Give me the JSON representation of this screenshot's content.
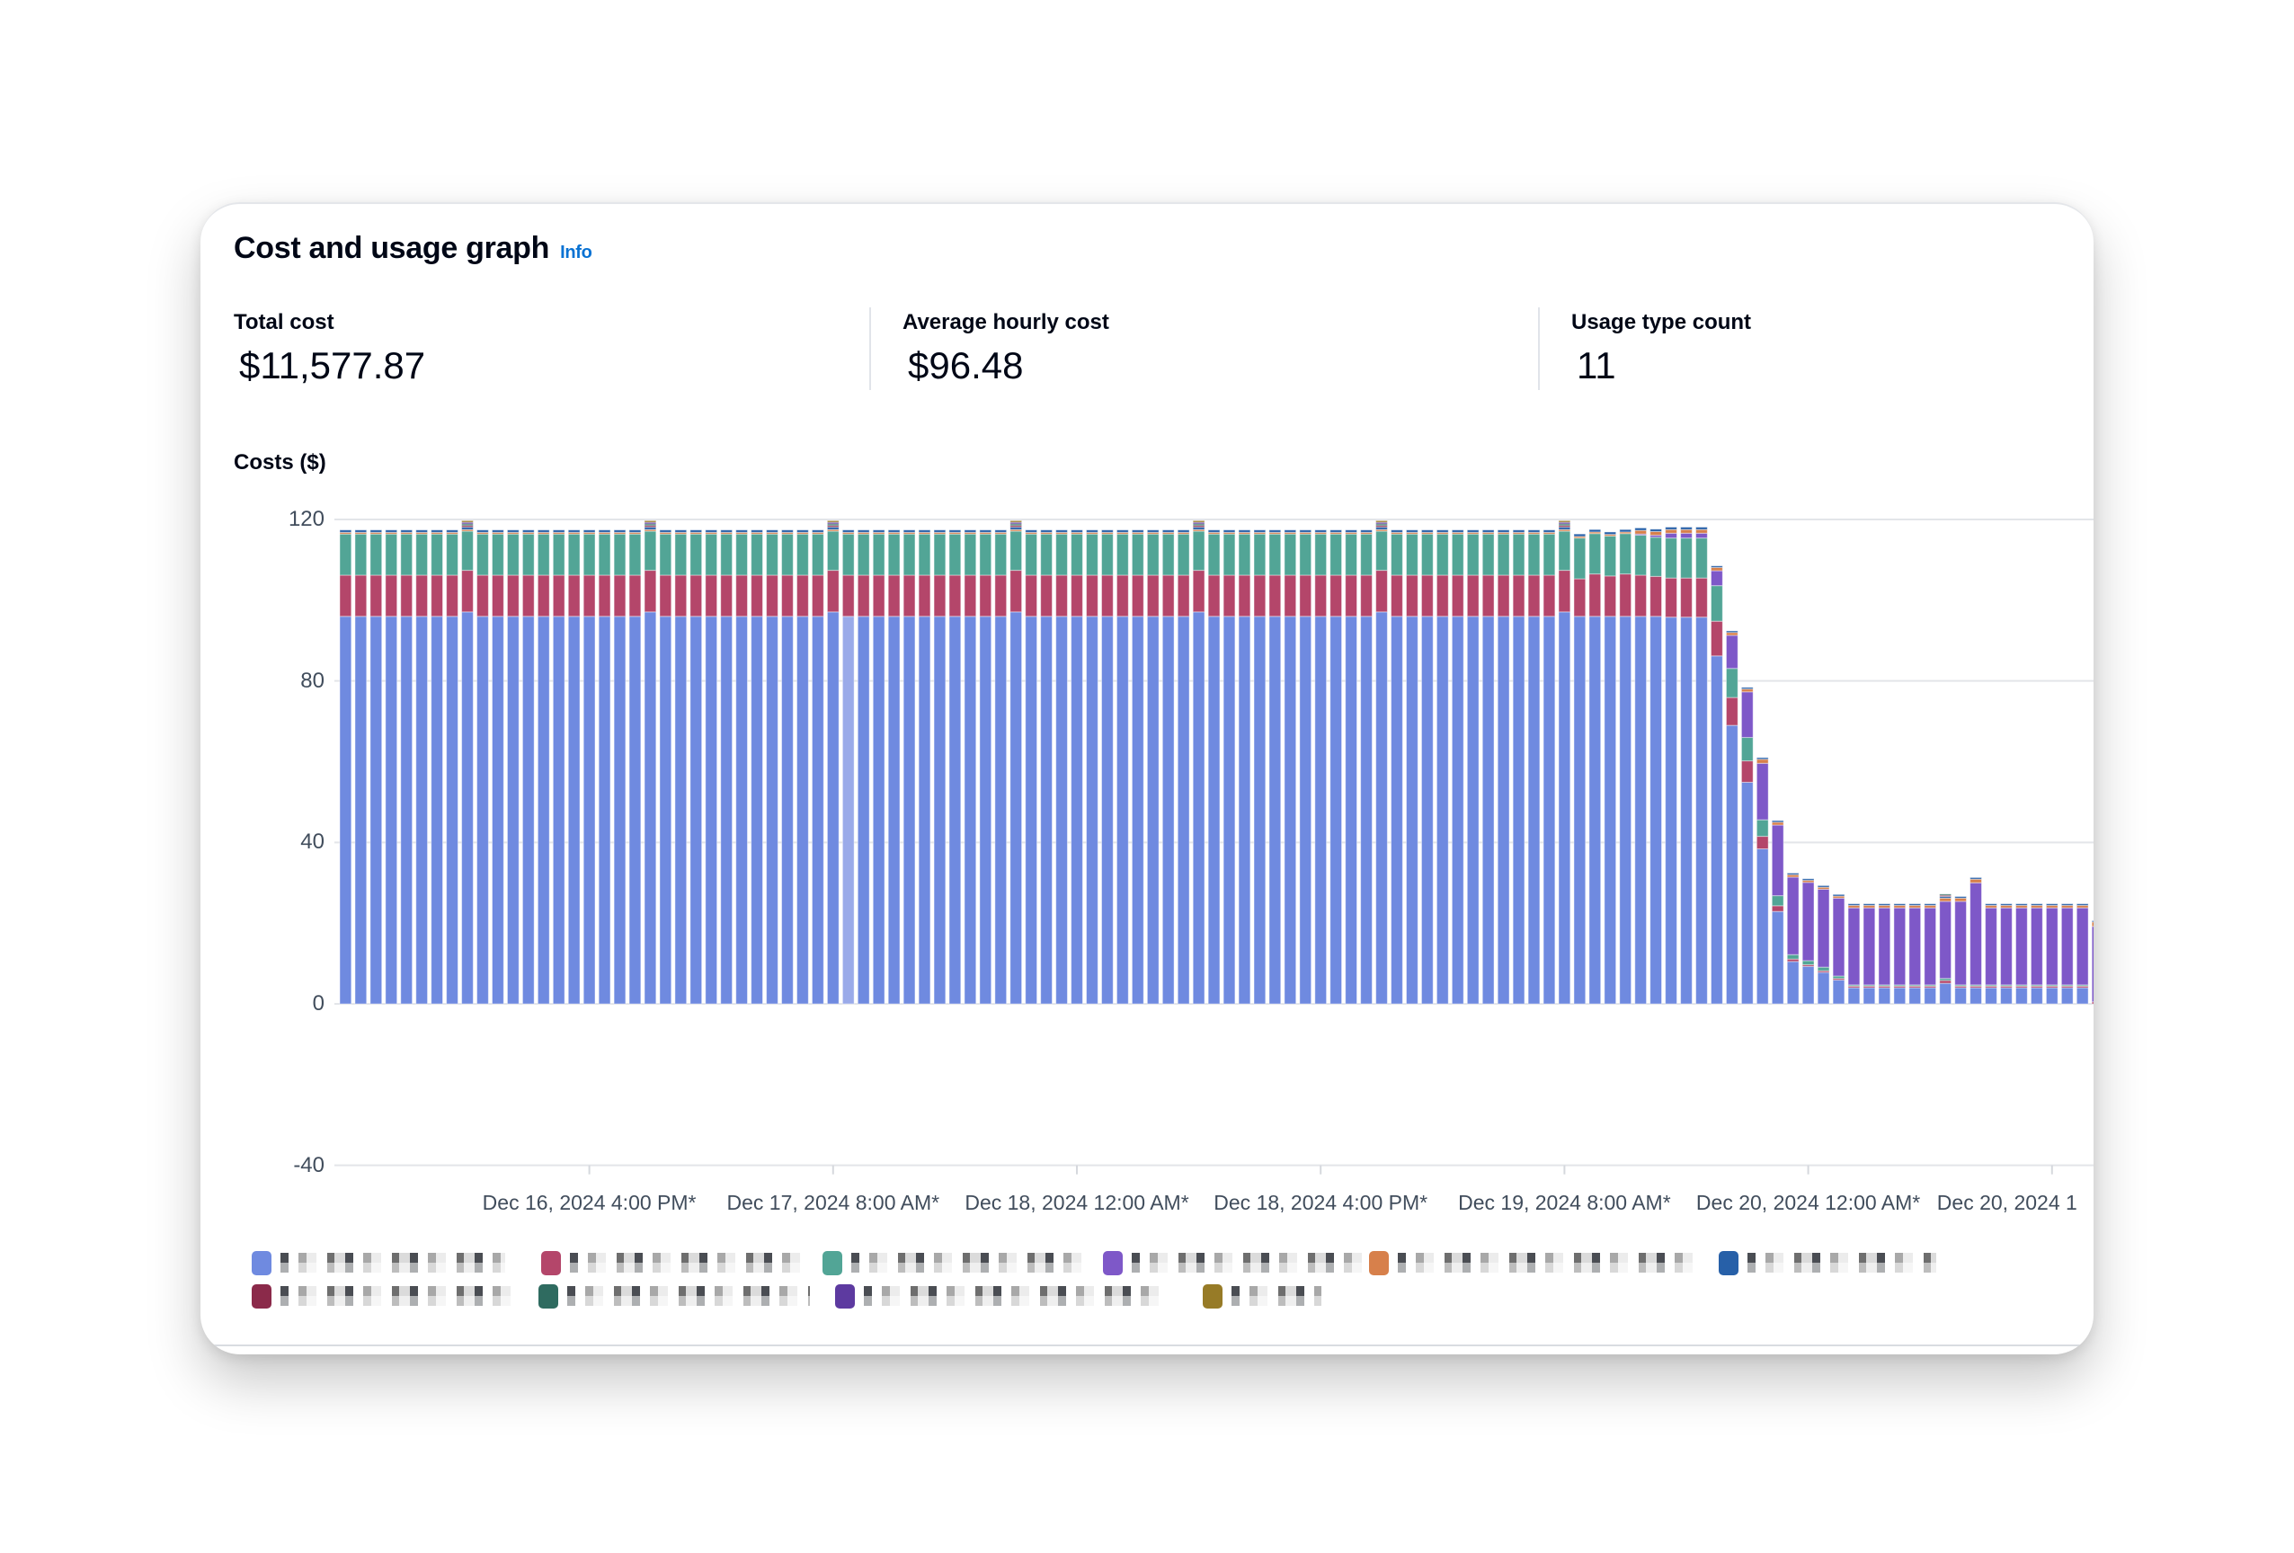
{
  "header": {
    "title": "Cost and usage graph",
    "info_link": "Info"
  },
  "summary": [
    {
      "label": "Total cost",
      "value": "$11,577.87"
    },
    {
      "label": "Average hourly cost",
      "value": "$96.48"
    },
    {
      "label": "Usage type count",
      "value": "11"
    }
  ],
  "chart_data": {
    "type": "bar",
    "stacked": true,
    "title": "",
    "ylabel": "Costs ($)",
    "xlabel": "",
    "ylim": [
      -40,
      120
    ],
    "yticks": [
      "120",
      "80",
      "40",
      "0",
      "-40"
    ],
    "ytick_values": [
      120,
      80,
      40,
      0,
      -40
    ],
    "grid": true,
    "x_tick_every_bars": 16,
    "x_tick_first_bar": 16,
    "xticks": [
      "Dec 16, 2024 4:00 PM*",
      "Dec 17, 2024 8:00 AM*",
      "Dec 18, 2024 12:00 AM*",
      "Dec 18, 2024 4:00 PM*",
      "Dec 19, 2024 8:00 AM*",
      "Dec 20, 2024 12:00 AM*",
      "Dec 20, 2024 1"
    ],
    "bar_count": 116,
    "highlighted_index": 33,
    "highlight_color": "#9aaae9",
    "legend_placement": "bottom",
    "series": [
      {
        "color": "#6f8ae0",
        "values": [
          96,
          96,
          96,
          96,
          96,
          96,
          96,
          96,
          97.1,
          96,
          96,
          96,
          96,
          96,
          96,
          96,
          96,
          96,
          96,
          96,
          97.1,
          96,
          96,
          96,
          96,
          96,
          96,
          96,
          96,
          96,
          96,
          96,
          97.1,
          96,
          96,
          96,
          96,
          96,
          96,
          96,
          96,
          96,
          96,
          96,
          97.1,
          96,
          96,
          96,
          96,
          96,
          96,
          96,
          96,
          96,
          96,
          96,
          97.1,
          96,
          96,
          96,
          96,
          96,
          96,
          96,
          96,
          96,
          96,
          96,
          97.1,
          96,
          96,
          96,
          96,
          96,
          96,
          96,
          96,
          96,
          96,
          96,
          97.1,
          96,
          96,
          96,
          96,
          96,
          96,
          95.8,
          95.8,
          95.8,
          86.2,
          69.0,
          54.9,
          38.4,
          22.9,
          10.5,
          9.3,
          7.8,
          5.9,
          4,
          4,
          4,
          4,
          4,
          4,
          5.1,
          4,
          4,
          4,
          4,
          4,
          4,
          4,
          4,
          4,
          0
        ]
      },
      {
        "color": "#b4466a",
        "values": [
          10.2,
          10.2,
          10.2,
          10.2,
          10.2,
          10.2,
          10.2,
          10.2,
          10.3,
          10.2,
          10.2,
          10.2,
          10.2,
          10.2,
          10.2,
          10.2,
          10.2,
          10.2,
          10.2,
          10.2,
          10.3,
          10.2,
          10.2,
          10.2,
          10.2,
          10.2,
          10.2,
          10.2,
          10.2,
          10.2,
          10.2,
          10.2,
          10.3,
          10.2,
          10.2,
          10.2,
          10.2,
          10.2,
          10.2,
          10.2,
          10.2,
          10.2,
          10.2,
          10.2,
          10.3,
          10.2,
          10.2,
          10.2,
          10.2,
          10.2,
          10.2,
          10.2,
          10.2,
          10.2,
          10.2,
          10.2,
          10.3,
          10.2,
          10.2,
          10.2,
          10.2,
          10.2,
          10.2,
          10.2,
          10.2,
          10.2,
          10.2,
          10.2,
          10.3,
          10.2,
          10.2,
          10.2,
          10.2,
          10.2,
          10.2,
          10.2,
          10.2,
          10.2,
          10.2,
          10.2,
          10.3,
          9.3,
          10.5,
          10,
          10.5,
          10.2,
          9.9,
          9.7,
          9.7,
          9.7,
          8.6,
          6.9,
          5.3,
          3.1,
          1.4,
          0.6,
          0.4,
          0.4,
          0.4,
          0.4,
          0.4,
          0.4,
          0.4,
          0.4,
          0.4,
          0.7,
          0.4,
          0.4,
          0.4,
          0.4,
          0.4,
          0.4,
          0.4,
          0.4,
          0.4,
          0.5
        ]
      },
      {
        "color": "#52a596",
        "values": [
          10.2,
          10.2,
          10.2,
          10.2,
          10.2,
          10.2,
          10.2,
          10.2,
          9.7,
          10.2,
          10.2,
          10.2,
          10.2,
          10.2,
          10.2,
          10.2,
          10.2,
          10.2,
          10.2,
          10.2,
          9.7,
          10.2,
          10.2,
          10.2,
          10.2,
          10.2,
          10.2,
          10.2,
          10.2,
          10.2,
          10.2,
          10.2,
          9.7,
          10.2,
          10.2,
          10.2,
          10.2,
          10.2,
          10.2,
          10.2,
          10.2,
          10.2,
          10.2,
          10.2,
          9.7,
          10.2,
          10.2,
          10.2,
          10.2,
          10.2,
          10.2,
          10.2,
          10.2,
          10.2,
          10.2,
          10.2,
          9.7,
          10.2,
          10.2,
          10.2,
          10.2,
          10.2,
          10.2,
          10.2,
          10.2,
          10.2,
          10.2,
          10.2,
          9.7,
          10.2,
          10.2,
          10.2,
          10.2,
          10.2,
          10.2,
          10.2,
          10.2,
          10.2,
          10.2,
          10.2,
          9.7,
          10.1,
          10,
          9.9,
          10,
          9.9,
          9.7,
          9.9,
          9.9,
          9.9,
          8.8,
          7.2,
          5.8,
          4.1,
          2.5,
          1.1,
          1.0,
          0.9,
          0.6,
          0.3,
          0.3,
          0.3,
          0.3,
          0.3,
          0.3,
          0.5,
          0.3,
          0.3,
          0.3,
          0.3,
          0.3,
          0.3,
          0.3,
          0.3,
          0.3,
          0
        ]
      },
      {
        "color": "#7e58c8",
        "values": [
          0,
          0,
          0,
          0,
          0,
          0,
          0,
          0,
          0,
          0,
          0,
          0,
          0,
          0,
          0,
          0,
          0,
          0,
          0,
          0,
          0,
          0,
          0,
          0,
          0,
          0,
          0,
          0,
          0,
          0,
          0,
          0,
          0,
          0,
          0,
          0,
          0,
          0,
          0,
          0,
          0,
          0,
          0,
          0,
          0,
          0,
          0,
          0,
          0,
          0,
          0,
          0,
          0,
          0,
          0,
          0,
          0,
          0,
          0,
          0,
          0,
          0,
          0,
          0,
          0,
          0,
          0,
          0,
          0,
          0,
          0,
          0,
          0,
          0,
          0,
          0,
          0,
          0,
          0,
          0,
          0,
          0,
          0,
          0,
          0,
          0.3,
          0.5,
          1.2,
          1.2,
          1.2,
          3.7,
          8.2,
          11.3,
          14.0,
          17.5,
          19.2,
          19.4,
          19.3,
          19.3,
          19.1,
          19.1,
          19.1,
          19.1,
          19.1,
          19.1,
          19.1,
          20.7,
          25.3,
          19.1,
          19.1,
          19.1,
          19.1,
          19.1,
          19.1,
          19.1,
          18.7
        ]
      },
      {
        "color": "#d7804b",
        "values": [
          0.4,
          0.4,
          0.4,
          0.4,
          0.4,
          0.4,
          0.4,
          0.4,
          0.4,
          0.4,
          0.4,
          0.4,
          0.4,
          0.4,
          0.4,
          0.4,
          0.4,
          0.4,
          0.4,
          0.4,
          0.4,
          0.4,
          0.4,
          0.4,
          0.4,
          0.4,
          0.4,
          0.4,
          0.4,
          0.4,
          0.4,
          0.4,
          0.4,
          0.4,
          0.4,
          0.4,
          0.4,
          0.4,
          0.4,
          0.4,
          0.4,
          0.4,
          0.4,
          0.4,
          0.4,
          0.4,
          0.4,
          0.4,
          0.4,
          0.4,
          0.4,
          0.4,
          0.4,
          0.4,
          0.4,
          0.4,
          0.4,
          0.4,
          0.4,
          0.4,
          0.4,
          0.4,
          0.4,
          0.4,
          0.4,
          0.4,
          0.4,
          0.4,
          0.4,
          0.4,
          0.4,
          0.4,
          0.4,
          0.4,
          0.4,
          0.4,
          0.4,
          0.4,
          0.4,
          0.4,
          0.4,
          0.4,
          0.4,
          0.4,
          0.4,
          0.9,
          0.9,
          0.9,
          0.9,
          0.9,
          0.8,
          0.7,
          0.7,
          1.0,
          0.7,
          0.6,
          0.5,
          0.5,
          0.5,
          0.6,
          0.6,
          0.6,
          0.6,
          0.6,
          0.6,
          0.8,
          0.8,
          0.9,
          0.6,
          0.6,
          0.6,
          0.6,
          0.6,
          0.6,
          0.6,
          1.1
        ]
      },
      {
        "color": "#2760a8",
        "values": [
          0.6,
          0.6,
          0.6,
          0.6,
          0.6,
          0.6,
          0.6,
          0.6,
          0.6,
          0.6,
          0.6,
          0.6,
          0.6,
          0.6,
          0.6,
          0.6,
          0.6,
          0.6,
          0.6,
          0.6,
          0.6,
          0.6,
          0.6,
          0.6,
          0.6,
          0.6,
          0.6,
          0.6,
          0.6,
          0.6,
          0.6,
          0.6,
          0.6,
          0.6,
          0.6,
          0.6,
          0.6,
          0.6,
          0.6,
          0.6,
          0.6,
          0.6,
          0.6,
          0.6,
          0.6,
          0.6,
          0.6,
          0.6,
          0.6,
          0.6,
          0.6,
          0.6,
          0.6,
          0.6,
          0.6,
          0.6,
          0.6,
          0.6,
          0.6,
          0.6,
          0.6,
          0.6,
          0.6,
          0.6,
          0.6,
          0.6,
          0.6,
          0.6,
          0.6,
          0.6,
          0.6,
          0.6,
          0.6,
          0.6,
          0.6,
          0.6,
          0.6,
          0.6,
          0.6,
          0.6,
          0.6,
          0.6,
          0.6,
          0.6,
          0.6,
          0.6,
          0.6,
          0.6,
          0.6,
          0.6,
          0.4,
          0.4,
          0.4,
          0.4,
          0.4,
          0.4,
          0.4,
          0.4,
          0.4,
          0.4,
          0.4,
          0.4,
          0.4,
          0.4,
          0.4,
          0.4,
          0.4,
          0.4,
          0.4,
          0.4,
          0.4,
          0.4,
          0.4,
          0.4,
          0.4,
          0.3
        ]
      },
      {
        "color": "#8b2a4a",
        "sparse_values": {
          "8": 0.4,
          "20": 0.4,
          "32": 0.4,
          "44": 0.4,
          "56": 0.4,
          "68": 0.4,
          "80": 0.4,
          "105": 0.3
        }
      },
      {
        "color": "#2f6b60",
        "sparse_values": {
          "8": 0.4,
          "20": 0.4,
          "32": 0.4,
          "44": 0.4,
          "56": 0.4,
          "68": 0.4,
          "80": 0.4,
          "105": 0.3
        }
      },
      {
        "color": "#5d3aa0",
        "sparse_values": {
          "8": 0.4,
          "20": 0.4,
          "32": 0.4,
          "44": 0.4,
          "56": 0.4,
          "68": 0.4,
          "80": 0.4
        }
      },
      {
        "color": "#977b27",
        "sparse_values": {
          "8": 0.4,
          "20": 0.4,
          "32": 0.4,
          "44": 0.4,
          "56": 0.4,
          "68": 0.4,
          "80": 0.4
        }
      }
    ]
  },
  "legend": [
    {
      "color": "#6f8ae0"
    },
    {
      "color": "#b4466a"
    },
    {
      "color": "#52a596"
    },
    {
      "color": "#7e58c8"
    },
    {
      "color": "#d7804b"
    },
    {
      "color": "#2760a8"
    },
    {
      "color": "#8b2a4a"
    },
    {
      "color": "#2f6b60"
    },
    {
      "color": "#5d3aa0"
    },
    {
      "color": "#977b27"
    }
  ]
}
